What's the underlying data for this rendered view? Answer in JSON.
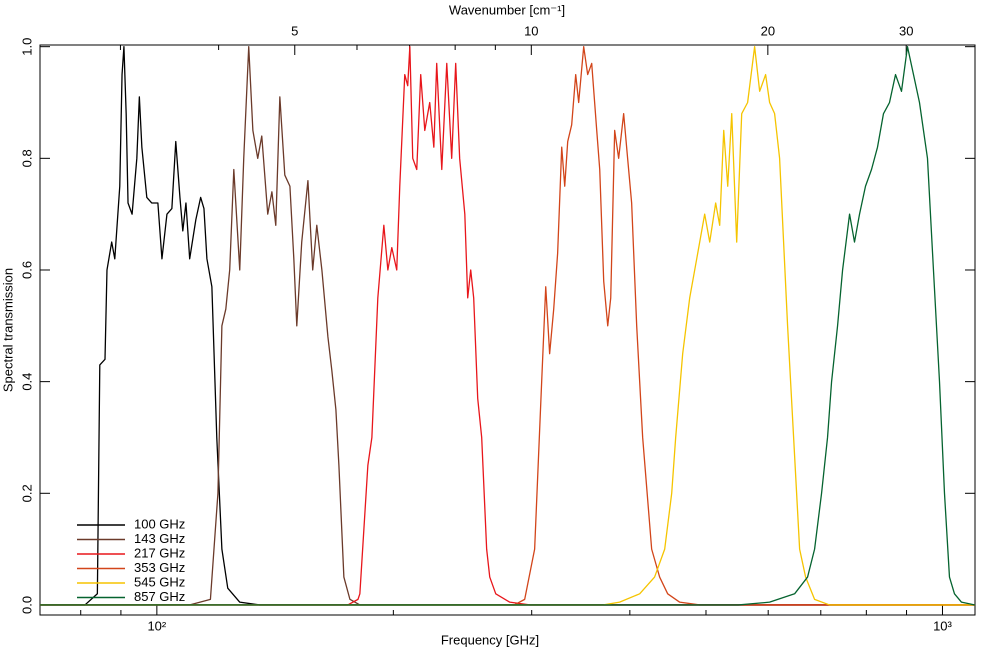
{
  "chart_data": {
    "type": "line",
    "xlabel": "Frequency [GHz]",
    "ylabel": "Spectral transmission",
    "x2label": "Wavenumber [cm⁻¹]",
    "xscale": "log",
    "xlim": [
      71,
      1100
    ],
    "xticks": [
      {
        "value": 100,
        "label": "10²"
      },
      {
        "value": 1000,
        "label": "10³"
      }
    ],
    "xminorticks": [
      80,
      90,
      200,
      300,
      400,
      500,
      600,
      700,
      800,
      900
    ],
    "x2scale": "log",
    "x2lim": [
      2.37,
      36.7
    ],
    "x2ticks": [
      5,
      10,
      20,
      30
    ],
    "x2minorticks": [
      3,
      4,
      6,
      7,
      8,
      9
    ],
    "ylim": [
      -0.018,
      1.003
    ],
    "yticks": [
      {
        "value": 0,
        "label": "0.0"
      },
      0.2,
      0.4,
      0.6,
      0.8,
      {
        "value": 1,
        "label": "1.0"
      }
    ],
    "legend": "lower left",
    "series": [
      {
        "name": "100 GHz",
        "color": "#000000",
        "x": [
          71,
          81,
          84,
          84.6,
          85.9,
          86.4,
          87.6,
          88.4,
          89.7,
          90.3,
          90.8,
          91.4,
          91.9,
          93.0,
          94.3,
          95.0,
          95.7,
          97.1,
          98.5,
          100.3,
          101.5,
          103.0,
          104.5,
          105.7,
          107.0,
          107.9,
          108.9,
          110.1,
          112.1,
          113.7,
          114.8,
          115.8,
          117.5,
          119.2,
          121.0,
          123.1,
          127.5,
          135.2,
          1100
        ],
        "values": [
          0,
          0,
          0.02,
          0.43,
          0.44,
          0.6,
          0.65,
          0.62,
          0.75,
          0.95,
          1.0,
          0.88,
          0.72,
          0.7,
          0.8,
          0.91,
          0.82,
          0.73,
          0.72,
          0.72,
          0.62,
          0.7,
          0.71,
          0.83,
          0.73,
          0.67,
          0.72,
          0.62,
          0.69,
          0.73,
          0.71,
          0.62,
          0.57,
          0.3,
          0.1,
          0.03,
          0.005,
          0,
          0
        ]
      },
      {
        "name": "143 GHz",
        "color": "#6b3a2a",
        "x": [
          71,
          110,
          117,
          119.6,
          121.0,
          122.4,
          123.8,
          125.3,
          127.5,
          129.0,
          130.9,
          132.5,
          134.4,
          136.0,
          138.4,
          140.1,
          141.7,
          143.4,
          145.5,
          147.7,
          149.4,
          150.7,
          152.9,
          155.7,
          157.9,
          159.8,
          162.2,
          165.1,
          167.0,
          169.0,
          170.5,
          173.0,
          176.1,
          181.3,
          1100
        ],
        "values": [
          0,
          0,
          0.01,
          0.2,
          0.5,
          0.53,
          0.6,
          0.78,
          0.6,
          0.8,
          1.0,
          0.85,
          0.8,
          0.84,
          0.7,
          0.74,
          0.68,
          0.91,
          0.77,
          0.75,
          0.62,
          0.5,
          0.65,
          0.76,
          0.6,
          0.68,
          0.6,
          0.48,
          0.42,
          0.35,
          0.25,
          0.05,
          0.01,
          0,
          0
        ]
      },
      {
        "name": "217 GHz",
        "color": "#e8161b",
        "x": [
          71,
          175,
          180.3,
          181.3,
          185.6,
          187.8,
          191.1,
          194.5,
          196.8,
          199.1,
          202.0,
          203.8,
          206.8,
          208.6,
          209.9,
          211.7,
          214.2,
          216.7,
          219.3,
          222.5,
          225.2,
          227.1,
          230.5,
          233.9,
          237.3,
          240.1,
          242.9,
          246.6,
          248.7,
          250.9,
          253.1,
          256.1,
          259.1,
          262.9,
          265.3,
          270.0,
          281.3,
          298.4,
          1100
        ],
        "values": [
          0,
          0,
          0.01,
          0.02,
          0.25,
          0.3,
          0.55,
          0.68,
          0.6,
          0.64,
          0.6,
          0.75,
          0.95,
          0.93,
          1.0,
          0.8,
          0.78,
          0.95,
          0.85,
          0.9,
          0.82,
          0.97,
          0.78,
          0.97,
          0.8,
          0.97,
          0.8,
          0.7,
          0.55,
          0.6,
          0.55,
          0.37,
          0.3,
          0.1,
          0.05,
          0.02,
          0.005,
          0,
          0
        ]
      },
      {
        "name": "353 GHz",
        "color": "#d2451a",
        "x": [
          71,
          285,
          293.9,
          302.6,
          308.9,
          312.6,
          316.2,
          320.0,
          323.7,
          327.6,
          330.5,
          333.4,
          337.3,
          341.3,
          344.3,
          349.4,
          353.5,
          357.7,
          363.0,
          366.2,
          370.5,
          374.9,
          378.2,
          382.6,
          387.1,
          392.8,
          397.4,
          402.1,
          408.1,
          415.3,
          426.4,
          436.5,
          446.9,
          462.9,
          490.8,
          1100
        ],
        "values": [
          0,
          0,
          0.01,
          0.1,
          0.4,
          0.57,
          0.45,
          0.53,
          0.63,
          0.82,
          0.75,
          0.83,
          0.86,
          0.95,
          0.9,
          1.0,
          0.95,
          0.97,
          0.85,
          0.78,
          0.58,
          0.5,
          0.55,
          0.85,
          0.8,
          0.88,
          0.8,
          0.72,
          0.5,
          0.3,
          0.1,
          0.05,
          0.02,
          0.005,
          0,
          0
        ]
      },
      {
        "name": "545 GHz",
        "color": "#f5c400",
        "x": [
          71,
          370,
          388.2,
          411.7,
          430.1,
          443.0,
          452.2,
          457.5,
          467.0,
          476.7,
          486.6,
          498.1,
          505.5,
          514.4,
          520.5,
          526.7,
          532.9,
          539.2,
          547.1,
          555.2,
          564.9,
          576.6,
          585.2,
          595.5,
          602.5,
          611.4,
          620.4,
          635.1,
          646.4,
          657.9,
          669.5,
          687.4,
          718.2,
          1100
        ],
        "values": [
          0,
          0,
          0.005,
          0.02,
          0.05,
          0.1,
          0.2,
          0.3,
          0.45,
          0.55,
          0.62,
          0.7,
          0.65,
          0.72,
          0.68,
          0.85,
          0.75,
          0.88,
          0.65,
          0.88,
          0.9,
          1.0,
          0.92,
          0.95,
          0.9,
          0.88,
          0.8,
          0.5,
          0.3,
          0.1,
          0.05,
          0.01,
          0,
          0
        ]
      },
      {
        "name": "857 GHz",
        "color": "#05632f",
        "x": [
          71,
          550,
          602.5,
          648.3,
          673.4,
          687.4,
          701.6,
          714.0,
          722.5,
          735.3,
          746.2,
          761.6,
          772.7,
          784.2,
          798.0,
          812.2,
          826.6,
          841.2,
          856.2,
          871.4,
          886.8,
          902.5,
          918.6,
          934.8,
          957.0,
          973.9,
          991.3,
          1005.9,
          1020.7,
          1035.8,
          1057.3,
          1100
        ],
        "values": [
          0,
          0,
          0.005,
          0.02,
          0.05,
          0.1,
          0.2,
          0.3,
          0.4,
          0.5,
          0.6,
          0.7,
          0.65,
          0.7,
          0.75,
          0.78,
          0.82,
          0.88,
          0.9,
          0.95,
          0.92,
          1.0,
          0.95,
          0.9,
          0.8,
          0.6,
          0.4,
          0.2,
          0.05,
          0.02,
          0.005,
          0
        ]
      }
    ]
  }
}
